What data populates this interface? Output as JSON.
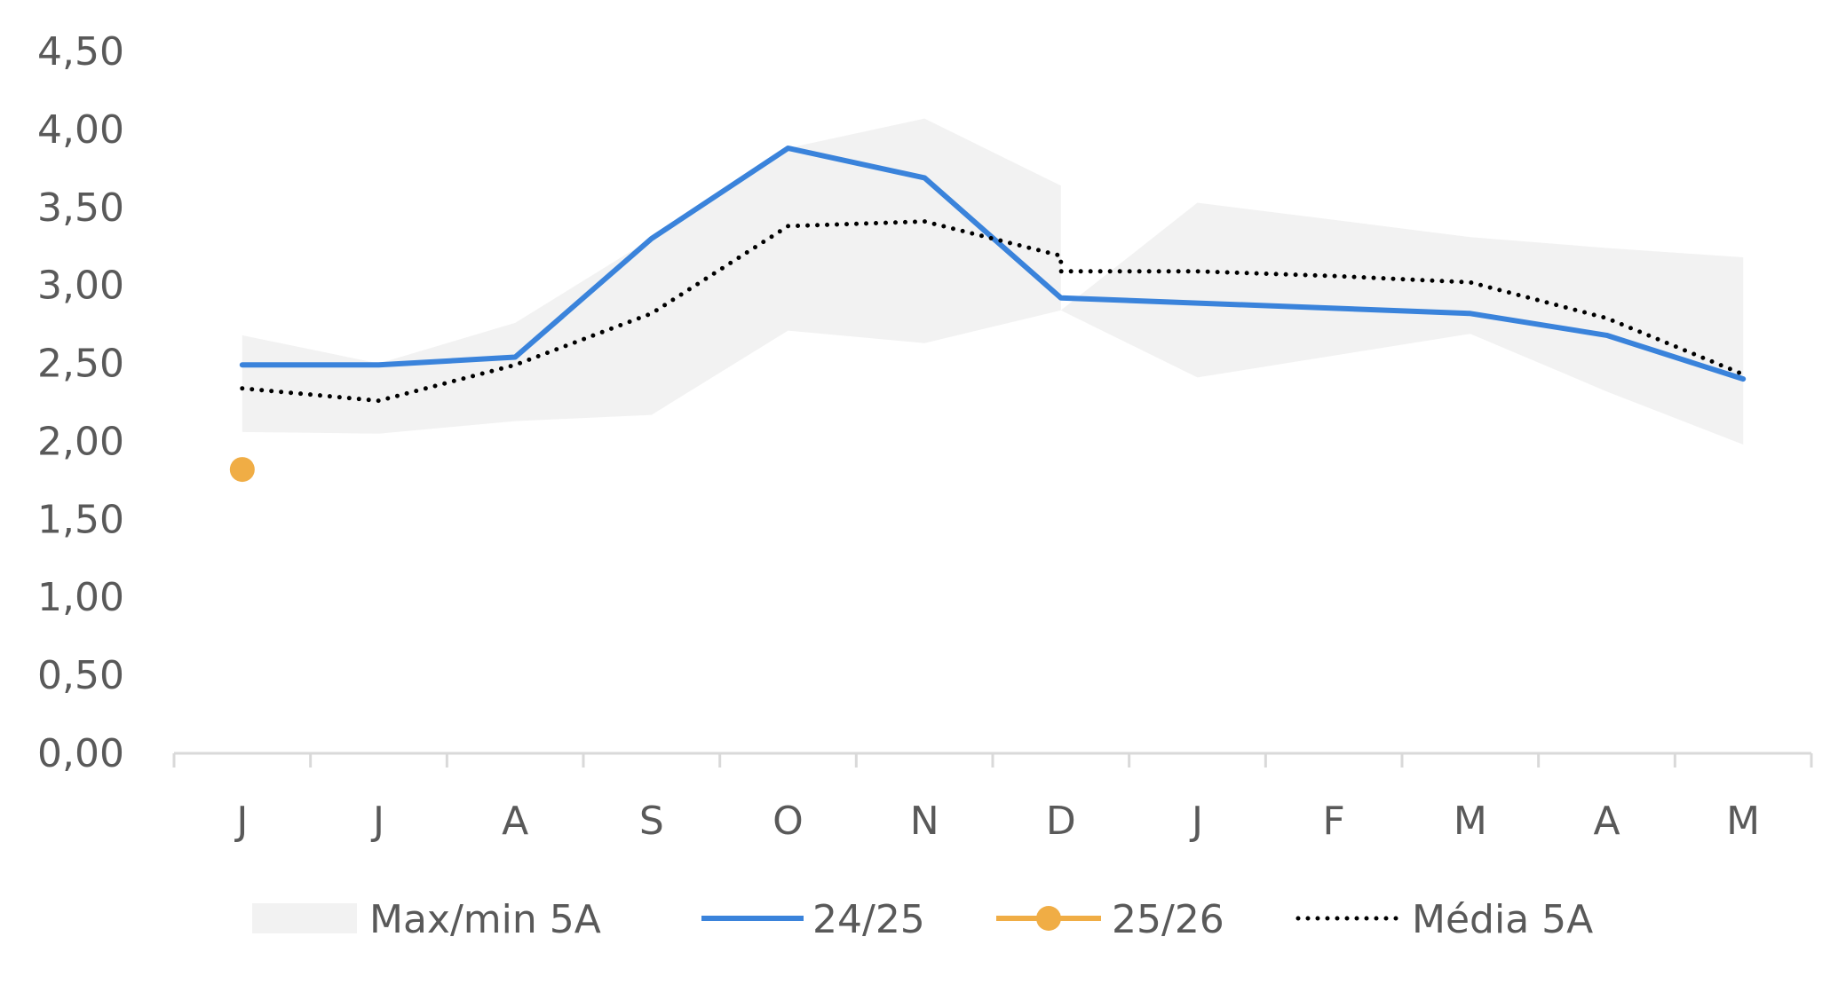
{
  "chart_data": {
    "type": "line",
    "title": "",
    "xlabel": "",
    "ylabel": "",
    "categories": [
      "J",
      "J",
      "A",
      "S",
      "O",
      "N",
      "D",
      "J",
      "F",
      "M",
      "A",
      "M"
    ],
    "y_ticks": [
      "0,00",
      "0,50",
      "1,00",
      "1,50",
      "2,00",
      "2,50",
      "3,00",
      "3,50",
      "4,00",
      "4,50"
    ],
    "ylim": [
      0,
      4.5
    ],
    "grid": false,
    "legend_position": "bottom",
    "band": {
      "name": "Max/min 5A",
      "color": "#f2f2f2",
      "max": [
        2.68,
        2.5,
        2.76,
        3.3,
        3.88,
        4.07,
        3.64,
        3.53,
        3.42,
        3.31,
        3.24,
        3.18
      ],
      "min": [
        2.06,
        2.05,
        2.13,
        2.17,
        2.71,
        2.63,
        2.84,
        2.41,
        2.55,
        2.69,
        2.32,
        1.98
      ],
      "step_after_index": 6,
      "step_max_value": 2.84
    },
    "series": [
      {
        "name": "24/25",
        "color": "#3a83db",
        "style": "solid",
        "values": [
          2.49,
          2.49,
          2.54,
          3.3,
          3.88,
          3.69,
          2.92,
          null,
          null,
          2.82,
          2.68,
          2.4
        ],
        "straight_segments": true
      },
      {
        "name": "25/26",
        "color": "#f0ad45",
        "style": "marker",
        "values": [
          1.82,
          null,
          null,
          null,
          null,
          null,
          null,
          null,
          null,
          null,
          null,
          null
        ]
      },
      {
        "name": "Média 5A",
        "color": "#000000",
        "style": "dotted",
        "values": [
          2.34,
          2.26,
          2.49,
          2.82,
          3.38,
          3.41,
          3.19,
          3.09,
          3.06,
          3.02,
          2.79,
          2.43
        ],
        "step_after_index": 6,
        "step_value": 3.09
      }
    ]
  }
}
